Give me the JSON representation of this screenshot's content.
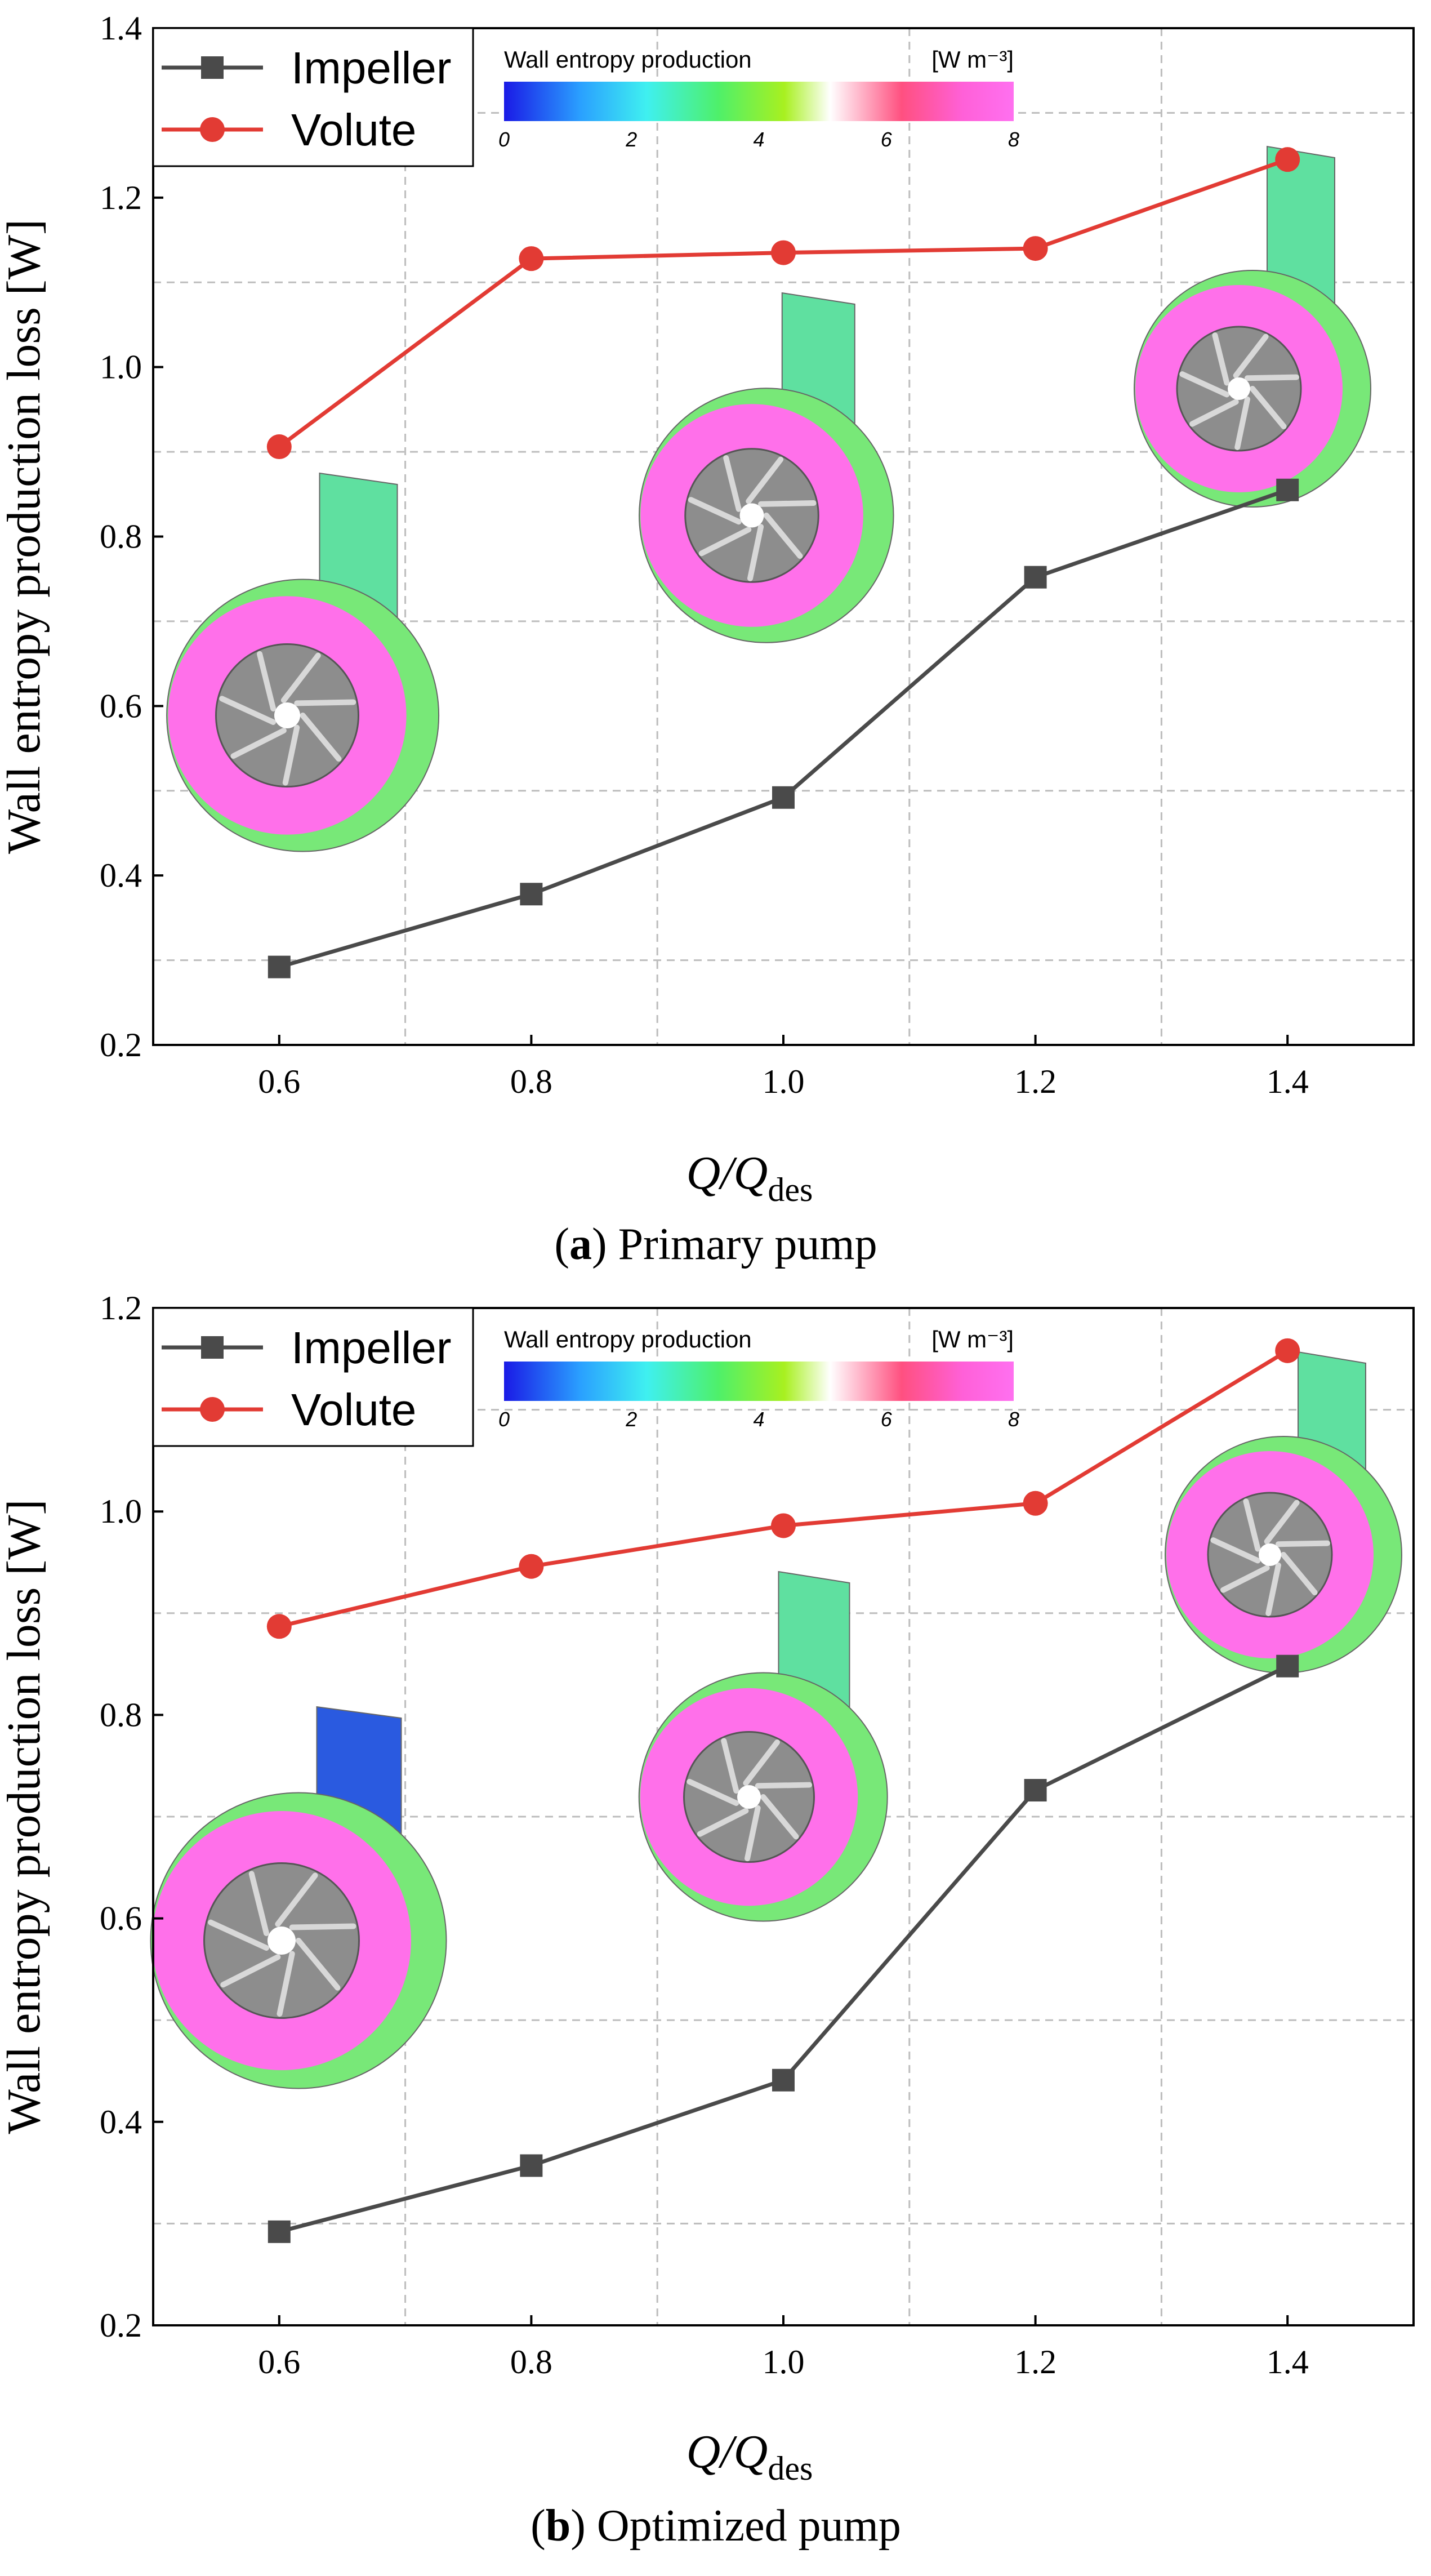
{
  "chart_data": [
    {
      "type": "line",
      "panel": "a",
      "caption_letter": "a",
      "caption_text": "Primary pump",
      "title": "",
      "xlabel_main": "Q/Q",
      "xlabel_sub": "des",
      "ylabel": "Wall entropy production loss [W]",
      "xlim": [
        0.5,
        1.5
      ],
      "ylim": [
        0.2,
        1.4
      ],
      "x_ticks": [
        0.6,
        0.8,
        1.0,
        1.2,
        1.4
      ],
      "x_tick_labels": [
        "0.6",
        "0.8",
        "1.0",
        "1.2",
        "1.4"
      ],
      "y_ticks": [
        0.2,
        0.4,
        0.6,
        0.8,
        1.0,
        1.2,
        1.4
      ],
      "y_tick_labels": [
        "0.2",
        "0.4",
        "0.6",
        "0.8",
        "1.0",
        "1.2",
        "1.4"
      ],
      "grid": true,
      "legend_position": "top-left",
      "x": [
        0.6,
        0.8,
        1.0,
        1.2,
        1.4
      ],
      "series": [
        {
          "name": "Impeller",
          "color": "#4a4a4a",
          "marker": "square",
          "values": [
            0.292,
            0.378,
            0.492,
            0.752,
            0.855
          ]
        },
        {
          "name": "Volute",
          "color": "#e23b34",
          "marker": "circle",
          "values": [
            0.906,
            1.128,
            1.135,
            1.14,
            1.245
          ]
        }
      ],
      "colorbar": {
        "title": "Wall entropy production",
        "unit": "[W m⁻³]",
        "ticks": [
          "0",
          "2",
          "4",
          "6",
          "8"
        ]
      }
    },
    {
      "type": "line",
      "panel": "b",
      "caption_letter": "b",
      "caption_text": "Optimized pump",
      "title": "",
      "xlabel_main": "Q/Q",
      "xlabel_sub": "des",
      "ylabel": "Wall entropy production loss [W]",
      "xlim": [
        0.5,
        1.5
      ],
      "ylim": [
        0.2,
        1.2
      ],
      "x_ticks": [
        0.6,
        0.8,
        1.0,
        1.2,
        1.4
      ],
      "x_tick_labels": [
        "0.6",
        "0.8",
        "1.0",
        "1.2",
        "1.4"
      ],
      "y_ticks": [
        0.2,
        0.4,
        0.6,
        0.8,
        1.0,
        1.2
      ],
      "y_tick_labels": [
        "0.2",
        "0.4",
        "0.6",
        "0.8",
        "1.0",
        "1.2"
      ],
      "grid": true,
      "legend_position": "top-left",
      "x": [
        0.6,
        0.8,
        1.0,
        1.2,
        1.4
      ],
      "series": [
        {
          "name": "Impeller",
          "color": "#4a4a4a",
          "marker": "square",
          "values": [
            0.292,
            0.357,
            0.441,
            0.726,
            0.848
          ]
        },
        {
          "name": "Volute",
          "color": "#e23b34",
          "marker": "circle",
          "values": [
            0.887,
            0.946,
            0.986,
            1.008,
            1.158
          ]
        }
      ],
      "colorbar": {
        "title": "Wall entropy production",
        "unit": "[W m⁻³]",
        "ticks": [
          "0",
          "2",
          "4",
          "6",
          "8"
        ]
      }
    }
  ]
}
